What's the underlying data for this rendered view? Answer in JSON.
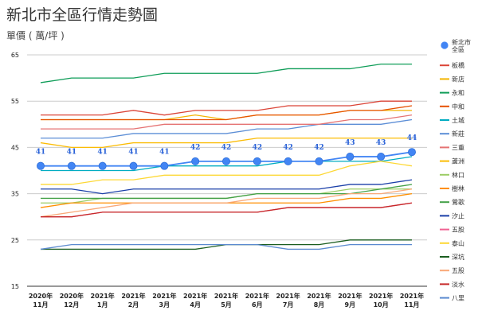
{
  "chart_data": {
    "type": "line",
    "title": "新北市全區行情走勢圖",
    "subtitle": "單價 ( 萬/坪 )",
    "xlabel": "",
    "ylabel": "",
    "ylim": [
      15,
      65
    ],
    "yticks": [
      15,
      25,
      35,
      45,
      55,
      65
    ],
    "grid": true,
    "legend_position": "right",
    "categories": [
      [
        "2020年",
        "11月"
      ],
      [
        "2020年",
        "12月"
      ],
      [
        "2021年",
        "1月"
      ],
      [
        "2021年",
        "2月"
      ],
      [
        "2021年",
        "3月"
      ],
      [
        "2021年",
        "4月"
      ],
      [
        "2021年",
        "5月"
      ],
      [
        "2021年",
        "6月"
      ],
      [
        "2021年",
        "7月"
      ],
      [
        "2021年",
        "8月"
      ],
      [
        "2021年",
        "9月"
      ],
      [
        "2021年",
        "10月"
      ],
      [
        "2021年",
        "11月"
      ]
    ],
    "series": [
      {
        "name": "新北市全區",
        "color": "#4285f4",
        "marker": true,
        "labels": true,
        "values": [
          41,
          41,
          41,
          41,
          41,
          42,
          42,
          42,
          42,
          42,
          43,
          43,
          44
        ]
      },
      {
        "name": "板橋",
        "color": "#db4437",
        "values": [
          52,
          52,
          52,
          53,
          52,
          53,
          53,
          53,
          54,
          54,
          54,
          55,
          55
        ]
      },
      {
        "name": "新店",
        "color": "#f4b400",
        "values": [
          51,
          51,
          51,
          51,
          51,
          52,
          51,
          52,
          52,
          52,
          53,
          53,
          53
        ]
      },
      {
        "name": "永和",
        "color": "#0f9d58",
        "values": [
          59,
          60,
          60,
          60,
          61,
          61,
          61,
          61,
          62,
          62,
          62,
          63,
          63
        ]
      },
      {
        "name": "中和",
        "color": "#e65100",
        "values": [
          51,
          51,
          51,
          51,
          51,
          51,
          51,
          52,
          52,
          52,
          53,
          53,
          54
        ]
      },
      {
        "name": "土城",
        "color": "#00acc1",
        "values": [
          40,
          40,
          40,
          40,
          41,
          41,
          41,
          41,
          42,
          42,
          42,
          42,
          43
        ]
      },
      {
        "name": "新莊",
        "color": "#5c8ed6",
        "values": [
          47,
          47,
          47,
          48,
          48,
          48,
          48,
          49,
          49,
          50,
          50,
          50,
          51
        ]
      },
      {
        "name": "三重",
        "color": "#e57373",
        "values": [
          49,
          49,
          49,
          49,
          50,
          50,
          50,
          50,
          50,
          50,
          51,
          51,
          52
        ]
      },
      {
        "name": "蘆洲",
        "color": "#fbbc05",
        "values": [
          46,
          45,
          45,
          46,
          46,
          46,
          46,
          47,
          47,
          47,
          47,
          47,
          47
        ]
      },
      {
        "name": "林口",
        "color": "#9ccc65",
        "values": [
          33,
          33,
          34,
          34,
          34,
          34,
          34,
          35,
          35,
          35,
          36,
          36,
          36
        ]
      },
      {
        "name": "樹林",
        "color": "#ff8f00",
        "values": [
          32,
          33,
          33,
          33,
          33,
          33,
          33,
          33,
          33,
          33,
          34,
          34,
          35
        ]
      },
      {
        "name": "鶯歌",
        "color": "#43a047",
        "values": [
          34,
          34,
          34,
          34,
          34,
          34,
          34,
          35,
          35,
          35,
          35,
          36,
          37
        ]
      },
      {
        "name": "汐止",
        "color": "#1a3fa8",
        "values": [
          36,
          36,
          35,
          36,
          36,
          36,
          36,
          36,
          36,
          36,
          37,
          37,
          38
        ]
      },
      {
        "name": "五股",
        "color": "#f06292",
        "values": [
          30,
          30,
          31,
          31,
          31,
          31,
          31,
          31,
          32,
          32,
          32,
          32,
          33
        ]
      },
      {
        "name": "泰山",
        "color": "#fdd835",
        "values": [
          37,
          37,
          38,
          38,
          39,
          39,
          39,
          39,
          39,
          39,
          41,
          42,
          41
        ]
      },
      {
        "name": "深坑",
        "color": "#1b5e20",
        "values": [
          23,
          23,
          23,
          23,
          23,
          23,
          24,
          24,
          24,
          24,
          25,
          25,
          25
        ]
      },
      {
        "name": "五股",
        "color": "#f9a877",
        "values": [
          30,
          31,
          32,
          33,
          33,
          33,
          33,
          34,
          34,
          34,
          35,
          35,
          36
        ]
      },
      {
        "name": "淡水",
        "color": "#c62828",
        "values": [
          30,
          30,
          31,
          31,
          31,
          31,
          31,
          31,
          32,
          32,
          32,
          32,
          33
        ]
      },
      {
        "name": "八里",
        "color": "#5b8ad0",
        "values": [
          23,
          24,
          24,
          24,
          24,
          24,
          24,
          24,
          23,
          23,
          24,
          24,
          24
        ]
      }
    ]
  }
}
